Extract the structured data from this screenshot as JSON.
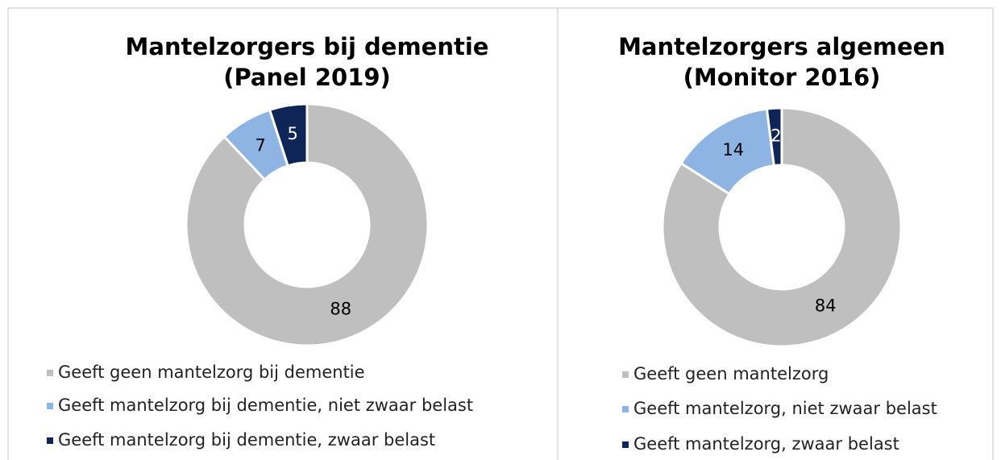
{
  "chart_data": [
    {
      "type": "donut",
      "title": [
        "Mantelzorgers bij dementie",
        "(Panel 2019)"
      ],
      "categories": [
        "Geeft geen mantelzorg bij dementie",
        "Geeft mantelzorg bij dementie, niet zwaar belast",
        "Geeft mantelzorg bij dementie, zwaar belast"
      ],
      "values": [
        88,
        7,
        5
      ],
      "colors": [
        "#bfbfbf",
        "#8eb4e3",
        "#0f2557"
      ],
      "label_colors": [
        "#000000",
        "#000000",
        "#ffffff"
      ]
    },
    {
      "type": "donut",
      "title": [
        "Mantelzorgers algemeen",
        "(Monitor 2016)"
      ],
      "categories": [
        "Geeft geen mantelzorg",
        "Geeft mantelzorg, niet zwaar belast",
        "Geeft mantelzorg, zwaar belast"
      ],
      "values": [
        84,
        14,
        2
      ],
      "colors": [
        "#bfbfbf",
        "#8eb4e3",
        "#0f2557"
      ],
      "label_colors": [
        "#000000",
        "#000000",
        "#ffffff"
      ]
    }
  ]
}
